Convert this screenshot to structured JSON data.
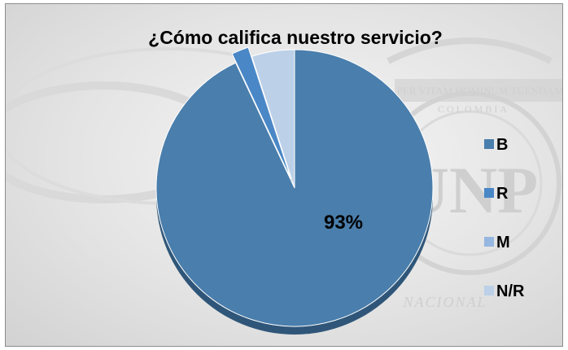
{
  "chart_data": {
    "type": "pie",
    "title": "¿Cómo califica nuestro servicio?",
    "categories": [
      "B",
      "R",
      "M",
      "N/R"
    ],
    "values": [
      93,
      2,
      0,
      5
    ],
    "data_labels": [
      {
        "category": "B",
        "text": "93%"
      }
    ],
    "colors": [
      "#4a7eac",
      "#4a87c6",
      "#95b7e0",
      "#bcd0e8"
    ],
    "exploded": "R",
    "legend_position": "right"
  },
  "watermark": {
    "motto": "PER VITAM HOMINUM TUENDAM",
    "country": "COLOMBIA",
    "initials": "UNP",
    "band": "NACIONAL"
  }
}
